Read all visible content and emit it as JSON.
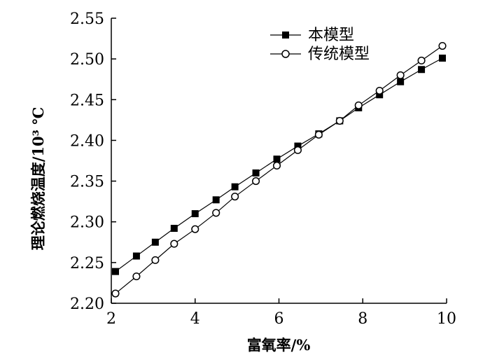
{
  "chart_data": {
    "type": "line",
    "xlabel": "富氧率/%",
    "ylabel": "理论燃烧温度/10³ ℃",
    "xlim": [
      2,
      10
    ],
    "ylim": [
      2.2,
      2.55
    ],
    "x_ticks": [
      "2",
      "4",
      "6",
      "8",
      "10"
    ],
    "y_ticks": [
      "2.20",
      "2.25",
      "2.30",
      "2.35",
      "2.40",
      "2.45",
      "2.50",
      "2.55"
    ],
    "legend_position": "top-right",
    "series": [
      {
        "name": "本模型",
        "marker": "filled-square",
        "x": [
          2.1,
          2.6,
          3.05,
          3.5,
          4.0,
          4.5,
          4.95,
          5.45,
          5.95,
          6.45,
          6.95,
          7.45,
          7.9,
          8.4,
          8.9,
          9.4,
          9.9
        ],
        "y": [
          2.239,
          2.258,
          2.275,
          2.292,
          2.31,
          2.327,
          2.343,
          2.36,
          2.377,
          2.393,
          2.408,
          2.424,
          2.44,
          2.456,
          2.472,
          2.487,
          2.501
        ]
      },
      {
        "name": "传统模型",
        "marker": "open-circle",
        "x": [
          2.1,
          2.6,
          3.05,
          3.5,
          4.0,
          4.5,
          4.95,
          5.45,
          5.95,
          6.45,
          6.95,
          7.45,
          7.9,
          8.4,
          8.9,
          9.4,
          9.9
        ],
        "y": [
          2.212,
          2.233,
          2.253,
          2.273,
          2.291,
          2.311,
          2.331,
          2.35,
          2.369,
          2.388,
          2.407,
          2.424,
          2.443,
          2.461,
          2.48,
          2.498,
          2.516
        ]
      }
    ]
  }
}
